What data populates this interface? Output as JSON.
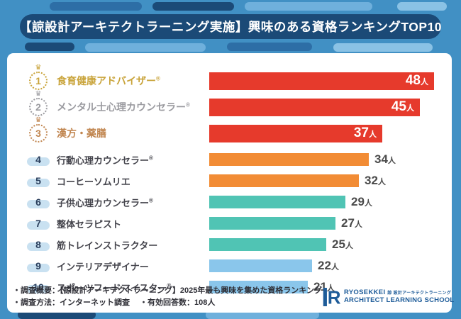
{
  "header": {
    "title": "【諒設計アーキテクトラーニング実施】興味のある資格ランキングTOP10"
  },
  "chart_data": {
    "type": "bar",
    "orientation": "horizontal",
    "title": "【諒設計アーキテクトラーニング実施】興味のある資格ランキングTOP10",
    "unit": "人",
    "max_value": 48,
    "categories": [
      "食育健康アドバイザー®",
      "メンタル士心理カウンセラー®",
      "漢方・薬膳",
      "行動心理カウンセラー®",
      "コーヒーソムリエ",
      "子供心理カウンセラー®",
      "整体セラピスト",
      "筋トレインストラクター",
      "インテリアデザイナー",
      "スポーツフードマイスター®"
    ],
    "values": [
      48,
      45,
      37,
      34,
      32,
      29,
      27,
      25,
      22,
      21
    ],
    "bar_colors": [
      "#E63A2C",
      "#E63A2C",
      "#E63A2C",
      "#F28C35",
      "#F28C35",
      "#50C4B4",
      "#50C4B4",
      "#50C4B4",
      "#8AC6EB",
      "#8AC6EB"
    ],
    "legend": "none",
    "grid": "off"
  },
  "rows": [
    {
      "rank": "1",
      "label": "食育健康アドバイザー",
      "reg": "®",
      "value": 48,
      "tier": "top",
      "badge": "gold",
      "bar_color": "#E63A2C",
      "label_color": "#C9A43B"
    },
    {
      "rank": "2",
      "label": "メンタル士心理カウンセラー",
      "reg": "®",
      "value": 45,
      "tier": "top",
      "badge": "silver",
      "bar_color": "#E63A2C",
      "label_color": "#9B9BA0"
    },
    {
      "rank": "3",
      "label": "漢方・薬膳",
      "reg": "",
      "value": 37,
      "tier": "top",
      "badge": "bronze",
      "bar_color": "#E63A2C",
      "label_color": "#C18650"
    },
    {
      "rank": "4",
      "label": "行動心理カウンセラー",
      "reg": "®",
      "value": 34,
      "tier": "normal",
      "badge": "",
      "bar_color": "#F28C35",
      "label_color": "#44444C"
    },
    {
      "rank": "5",
      "label": "コーヒーソムリエ",
      "reg": "",
      "value": 32,
      "tier": "normal",
      "badge": "",
      "bar_color": "#F28C35",
      "label_color": "#44444C"
    },
    {
      "rank": "6",
      "label": "子供心理カウンセラー",
      "reg": "®",
      "value": 29,
      "tier": "normal",
      "badge": "",
      "bar_color": "#50C4B4",
      "label_color": "#44444C"
    },
    {
      "rank": "7",
      "label": "整体セラピスト",
      "reg": "",
      "value": 27,
      "tier": "normal",
      "badge": "",
      "bar_color": "#50C4B4",
      "label_color": "#44444C"
    },
    {
      "rank": "8",
      "label": "筋トレインストラクター",
      "reg": "",
      "value": 25,
      "tier": "normal",
      "badge": "",
      "bar_color": "#50C4B4",
      "label_color": "#44444C"
    },
    {
      "rank": "9",
      "label": "インテリアデザイナー",
      "reg": "",
      "value": 22,
      "tier": "normal",
      "badge": "",
      "bar_color": "#8AC6EB",
      "label_color": "#44444C"
    },
    {
      "rank": "10",
      "label": "スポーツフードマイスター",
      "reg": "®",
      "value": 21,
      "tier": "normal",
      "badge": "",
      "bar_color": "#8AC6EB",
      "label_color": "#44444C"
    }
  ],
  "crown_glyph": "♛",
  "footer": {
    "line1": "・調査概要：【諒設計アーキテクトラーニング】2025年最も興味を集めた資格ランキング",
    "line2_method": "・調査方法：インターネット調査",
    "line2_responses": "・有効回答数：108人"
  },
  "logo": {
    "name_en": "RYOSEKKEI",
    "name_jp": "諒 設計アーキテクトラーニング",
    "school": "ARCHITECT LEARNING SCHOOL"
  },
  "colors": {
    "background_blue": "#4190C4",
    "title_band_navy": "#1B4A77",
    "panel_white": "#FFFFFF",
    "bar_red": "#E63A2C",
    "bar_orange": "#F28C35",
    "bar_teal": "#50C4B4",
    "bar_lightblue": "#8AC6EB",
    "gold": "#C9A43B",
    "silver": "#9B9BA0",
    "bronze": "#C18650",
    "logo_blue": "#1E5C99"
  }
}
